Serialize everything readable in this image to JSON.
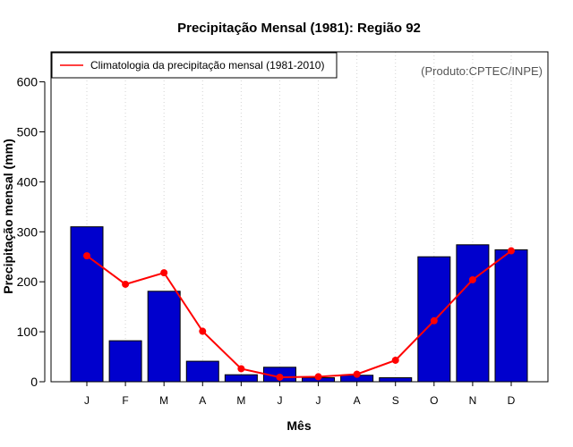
{
  "chart_data": {
    "type": "bar",
    "title": "Precipitação Mensal (1981): Região 92",
    "xlabel": "Mês",
    "ylabel": "Precipitação mensal (mm)",
    "ylim": [
      0,
      660
    ],
    "yticks": [
      0,
      100,
      200,
      300,
      400,
      500,
      600
    ],
    "categories": [
      "J",
      "F",
      "M",
      "A",
      "M",
      "J",
      "J",
      "A",
      "S",
      "O",
      "N",
      "D"
    ],
    "series": [
      {
        "name": "Precipitação mensal (1981)",
        "type": "bar",
        "color": "#0000CD",
        "values": [
          310,
          82,
          181,
          41,
          14,
          29,
          8,
          13,
          8,
          250,
          274,
          264
        ]
      },
      {
        "name": "Climatologia da precipitação mensal (1981-2010)",
        "type": "line",
        "color": "#FF0000",
        "values": [
          252,
          195,
          218,
          101,
          26,
          9,
          10,
          15,
          43,
          122,
          204,
          262
        ]
      }
    ],
    "legend": {
      "label": "Climatologia da precipitação mensal (1981-2010)",
      "position": "top-left"
    },
    "credit": "(Produto:CPTEC/INPE)",
    "grid": "vertical-dotted"
  }
}
